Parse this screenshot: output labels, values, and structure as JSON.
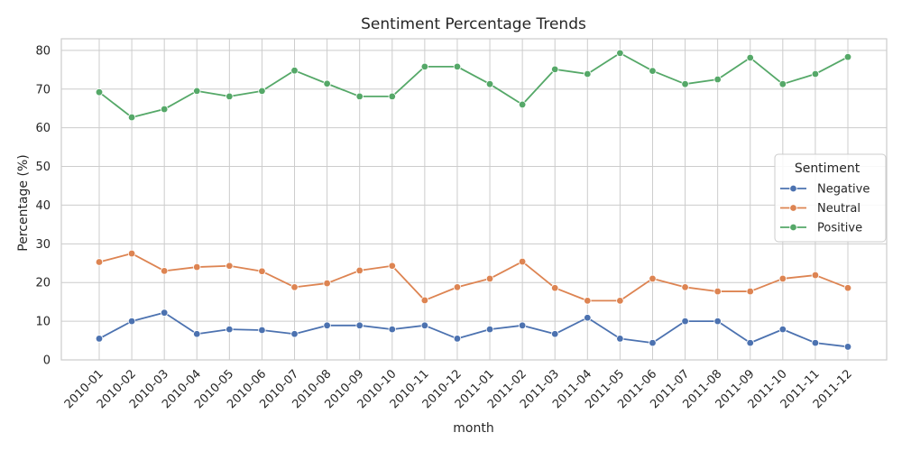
{
  "chart_data": {
    "type": "line",
    "title": "Sentiment Percentage Trends",
    "xlabel": "month",
    "ylabel": "Percentage (%)",
    "ylim": [
      0,
      83
    ],
    "yticks": [
      0,
      10,
      20,
      30,
      40,
      50,
      60,
      70,
      80
    ],
    "grid": true,
    "legend_title": "Sentiment",
    "legend_position": "center-right",
    "categories": [
      "2010-01",
      "2010-02",
      "2010-03",
      "2010-04",
      "2010-05",
      "2010-06",
      "2010-07",
      "2010-08",
      "2010-09",
      "2010-10",
      "2010-11",
      "2010-12",
      "2011-01",
      "2011-02",
      "2011-03",
      "2011-04",
      "2011-05",
      "2011-06",
      "2011-07",
      "2011-08",
      "2011-09",
      "2011-10",
      "2011-11",
      "2011-12"
    ],
    "series": [
      {
        "name": "Negative",
        "color": "#4c72b0",
        "values": [
          5.5,
          10.0,
          12.2,
          6.7,
          7.9,
          7.7,
          6.7,
          8.9,
          8.9,
          7.9,
          8.9,
          5.5,
          7.9,
          8.9,
          6.7,
          10.9,
          5.5,
          4.4,
          10.0,
          10.0,
          4.4,
          7.9,
          4.4,
          3.4
        ]
      },
      {
        "name": "Neutral",
        "color": "#dd8452",
        "values": [
          25.3,
          27.5,
          23.0,
          24.0,
          24.3,
          22.9,
          18.8,
          19.8,
          23.1,
          24.3,
          15.4,
          18.8,
          21.0,
          25.4,
          18.6,
          15.3,
          15.3,
          21.0,
          18.8,
          17.7,
          17.7,
          21.0,
          21.9,
          18.6
        ]
      },
      {
        "name": "Positive",
        "color": "#55a868",
        "values": [
          69.2,
          62.7,
          64.8,
          69.5,
          68.1,
          69.5,
          74.8,
          71.4,
          68.1,
          68.1,
          75.8,
          75.8,
          71.3,
          66.0,
          75.1,
          73.9,
          79.3,
          74.7,
          71.3,
          72.5,
          78.1,
          71.3,
          73.9,
          78.3
        ]
      }
    ]
  }
}
